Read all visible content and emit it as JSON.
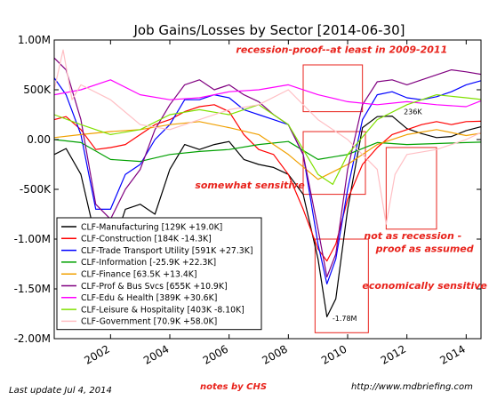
{
  "chart_data": {
    "type": "line",
    "title": "Job Gains/Losses by Sector  [2014-06-30]",
    "xlabel": "",
    "ylabel": "",
    "xlim": [
      2000.1,
      2014.5
    ],
    "ylim": [
      -2000000,
      1000000
    ],
    "x_ticks": [
      2002,
      2004,
      2006,
      2008,
      2010,
      2012,
      2014
    ],
    "x_tick_labels": [
      "2002",
      "2004",
      "2006",
      "2008",
      "2010",
      "2012",
      "2014"
    ],
    "y_ticks": [
      -2000000,
      -1500000,
      -1000000,
      -500000,
      0,
      500000,
      1000000
    ],
    "y_tick_labels": [
      "-2.00M",
      "-1.50M",
      "-1.00M",
      "-500K",
      "0.00",
      "500K",
      "1.00M"
    ],
    "grid": false,
    "legend_position": "lower-left",
    "series": [
      {
        "name": "CLF-Manufacturing [129K +19.0K]",
        "color": "#000000",
        "x": [
          2000.1,
          2000.5,
          2001.0,
          2001.5,
          2002.0,
          2002.5,
          2003.0,
          2003.5,
          2004.0,
          2004.5,
          2005.0,
          2005.5,
          2006.0,
          2006.5,
          2007.0,
          2007.5,
          2008.0,
          2008.5,
          2009.0,
          2009.3,
          2009.6,
          2010.0,
          2010.5,
          2011.0,
          2011.5,
          2012.0,
          2012.5,
          2013.0,
          2013.5,
          2014.0,
          2014.5
        ],
        "y": [
          -150000,
          -90000,
          -350000,
          -1000000,
          -1150000,
          -700000,
          -650000,
          -750000,
          -300000,
          -50000,
          -100000,
          -50000,
          -20000,
          -200000,
          -250000,
          -280000,
          -350000,
          -550000,
          -1200000,
          -1780000,
          -1600000,
          -700000,
          120000,
          230000,
          236000,
          110000,
          60000,
          20000,
          30000,
          90000,
          129000
        ]
      },
      {
        "name": "CLF-Construction [184K -14.3K]",
        "color": "#ff0000",
        "x": [
          2000.1,
          2000.5,
          2001.0,
          2001.5,
          2002.0,
          2002.5,
          2003.0,
          2003.5,
          2004.0,
          2004.5,
          2005.0,
          2005.5,
          2006.0,
          2006.5,
          2007.0,
          2007.5,
          2008.0,
          2008.5,
          2009.0,
          2009.3,
          2009.6,
          2010.0,
          2010.5,
          2011.0,
          2011.5,
          2012.0,
          2012.5,
          2013.0,
          2013.5,
          2014.0,
          2014.5
        ],
        "y": [
          200000,
          230000,
          100000,
          -100000,
          -80000,
          -50000,
          50000,
          150000,
          200000,
          280000,
          330000,
          350000,
          280000,
          50000,
          -100000,
          -150000,
          -350000,
          -700000,
          -1100000,
          -1220000,
          -1050000,
          -600000,
          -250000,
          -80000,
          50000,
          100000,
          150000,
          180000,
          150000,
          180000,
          184000
        ]
      },
      {
        "name": "CLF-Trade Transport Utility [591K +27.3K]",
        "color": "#0000ff",
        "x": [
          2000.1,
          2000.5,
          2001.0,
          2001.5,
          2002.0,
          2002.5,
          2003.0,
          2003.5,
          2004.0,
          2004.5,
          2005.0,
          2005.5,
          2006.0,
          2006.5,
          2007.0,
          2007.5,
          2008.0,
          2008.5,
          2009.0,
          2009.3,
          2009.6,
          2010.0,
          2010.5,
          2011.0,
          2011.5,
          2012.0,
          2012.5,
          2013.0,
          2013.5,
          2014.0,
          2014.5
        ],
        "y": [
          620000,
          450000,
          50000,
          -700000,
          -700000,
          -350000,
          -250000,
          0,
          150000,
          400000,
          400000,
          450000,
          420000,
          300000,
          250000,
          200000,
          150000,
          -150000,
          -1050000,
          -1450000,
          -1200000,
          -500000,
          200000,
          450000,
          480000,
          420000,
          400000,
          430000,
          480000,
          550000,
          591000
        ]
      },
      {
        "name": "CLF-Information [-25.9K +22.3K]",
        "color": "#00a000",
        "x": [
          2000.1,
          2001.0,
          2002.0,
          2003.0,
          2004.0,
          2005.0,
          2006.0,
          2007.0,
          2008.0,
          2009.0,
          2010.0,
          2011.0,
          2012.0,
          2013.0,
          2014.0,
          2014.5
        ],
        "y": [
          0,
          -30000,
          -200000,
          -220000,
          -150000,
          -120000,
          -100000,
          -50000,
          -20000,
          -200000,
          -150000,
          -30000,
          -50000,
          -40000,
          -30000,
          -25900
        ]
      },
      {
        "name": "CLF-Finance [63.5K +13.4K]",
        "color": "#f0a000",
        "x": [
          2000.1,
          2001.0,
          2002.0,
          2003.0,
          2004.0,
          2005.0,
          2006.0,
          2007.0,
          2008.0,
          2009.0,
          2010.0,
          2011.0,
          2012.0,
          2013.0,
          2014.0,
          2014.5
        ],
        "y": [
          20000,
          50000,
          80000,
          100000,
          150000,
          180000,
          120000,
          50000,
          -150000,
          -400000,
          -250000,
          -50000,
          50000,
          100000,
          40000,
          63500
        ]
      },
      {
        "name": "CLF-Prof & Bus Svcs [655K +10.9K]",
        "color": "#800080",
        "x": [
          2000.1,
          2000.5,
          2001.0,
          2001.5,
          2002.0,
          2002.5,
          2003.0,
          2003.5,
          2004.0,
          2004.5,
          2005.0,
          2005.5,
          2006.0,
          2006.5,
          2007.0,
          2007.5,
          2008.0,
          2008.5,
          2009.0,
          2009.3,
          2009.6,
          2010.0,
          2010.5,
          2011.0,
          2011.5,
          2012.0,
          2012.5,
          2013.0,
          2013.5,
          2014.0,
          2014.5
        ],
        "y": [
          820000,
          700000,
          200000,
          -650000,
          -800000,
          -500000,
          -300000,
          100000,
          350000,
          550000,
          600000,
          500000,
          550000,
          450000,
          380000,
          250000,
          150000,
          -150000,
          -900000,
          -1380000,
          -1150000,
          -300000,
          350000,
          580000,
          600000,
          550000,
          600000,
          650000,
          700000,
          680000,
          655000
        ]
      },
      {
        "name": "CLF-Edu & Health [389K +30.6K]",
        "color": "#ff00ff",
        "x": [
          2000.1,
          2001.0,
          2002.0,
          2003.0,
          2004.0,
          2005.0,
          2006.0,
          2007.0,
          2008.0,
          2009.0,
          2010.0,
          2011.0,
          2012.0,
          2013.0,
          2014.0,
          2014.5
        ],
        "y": [
          450000,
          500000,
          600000,
          450000,
          400000,
          420000,
          480000,
          500000,
          550000,
          450000,
          380000,
          350000,
          380000,
          350000,
          330000,
          389000
        ]
      },
      {
        "name": "CLF-Leisure & Hospitality [403K -8.10K]",
        "color": "#80e000",
        "x": [
          2000.1,
          2001.0,
          2002.0,
          2003.0,
          2004.0,
          2005.0,
          2006.0,
          2007.0,
          2008.0,
          2009.0,
          2009.5,
          2010.0,
          2011.0,
          2012.0,
          2013.0,
          2014.0,
          2014.5
        ],
        "y": [
          250000,
          150000,
          50000,
          100000,
          250000,
          300000,
          250000,
          350000,
          150000,
          -350000,
          -450000,
          -150000,
          200000,
          350000,
          450000,
          420000,
          403000
        ]
      },
      {
        "name": "CLF-Government [70.9K +58.0K]",
        "color": "#ffbfc4",
        "x": [
          2000.1,
          2000.4,
          2000.7,
          2001.0,
          2002.0,
          2003.0,
          2004.0,
          2005.0,
          2006.0,
          2007.0,
          2008.0,
          2009.0,
          2010.0,
          2011.0,
          2011.3,
          2011.6,
          2012.0,
          2013.0,
          2014.0,
          2014.5
        ],
        "y": [
          500000,
          900000,
          400000,
          550000,
          400000,
          150000,
          100000,
          200000,
          300000,
          350000,
          500000,
          200000,
          0,
          -300000,
          -850000,
          -350000,
          -150000,
          -100000,
          0,
          70900
        ]
      }
    ],
    "annotations": [
      {
        "text": "recession-proof--at least in 2009-2011",
        "x": 2009.8,
        "y": 870000
      },
      {
        "text": "somewhat sensitive",
        "x": 2006.7,
        "y": -490000
      },
      {
        "text": "not as recession -",
        "x": 2012.2,
        "y": -1000000
      },
      {
        "text": "proof as assumed",
        "x": 2012.6,
        "y": -1130000
      },
      {
        "text": "economically sensitive",
        "x": 2012.6,
        "y": -1500000
      },
      {
        "text": "236K",
        "x": 2012.2,
        "y": 255000
      },
      {
        "text": "-1.78M",
        "x": 2009.9,
        "y": -1820000
      }
    ],
    "regions": [
      {
        "x": [
          2008.5,
          2010.5
        ],
        "y": [
          280000,
          750000
        ]
      },
      {
        "x": [
          2008.5,
          2010.6
        ],
        "y": [
          -550000,
          80000
        ]
      },
      {
        "x": [
          2011.3,
          2013.0
        ],
        "y": [
          -900000,
          -80000
        ]
      },
      {
        "x": [
          2008.9,
          2010.7
        ],
        "y": [
          -1940000,
          -1000000
        ]
      }
    ]
  },
  "footer": {
    "last_update": "Last update Jul  4, 2014",
    "notes": "notes by CHS",
    "url": "http://www.mdbriefing.com"
  }
}
